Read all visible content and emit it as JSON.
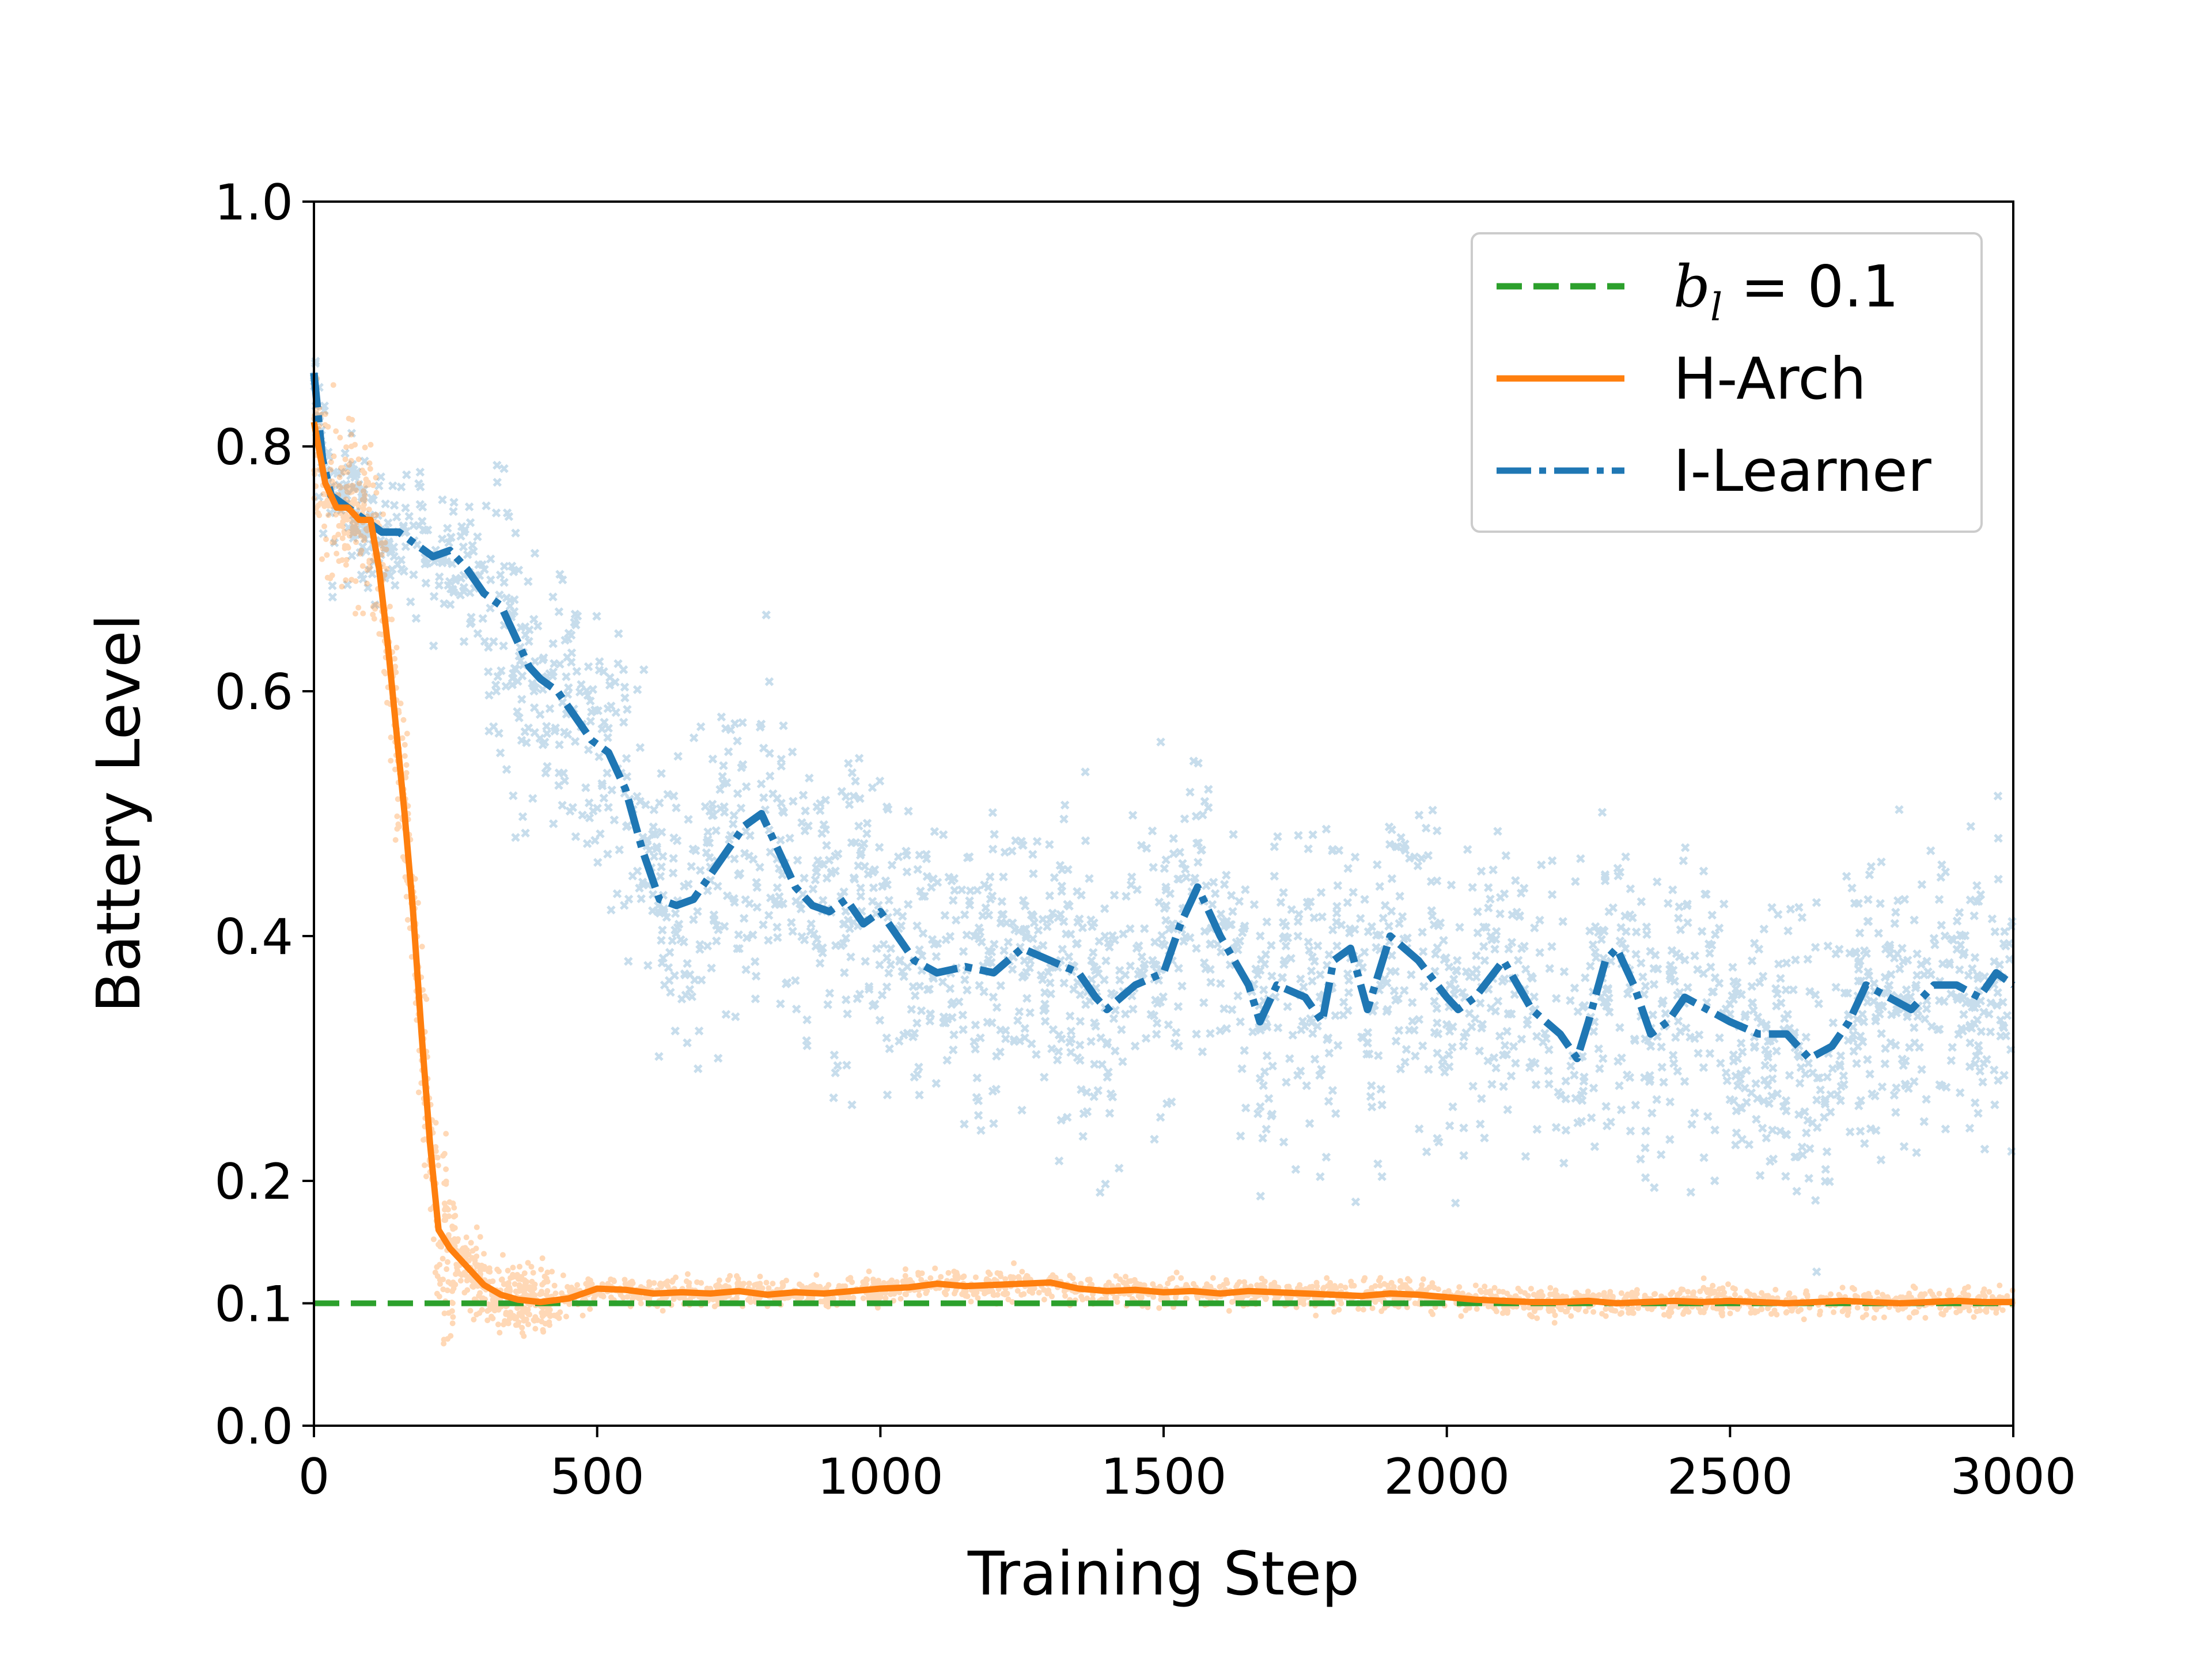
{
  "chart_data": {
    "type": "line",
    "title": "",
    "xlabel": "Training Step",
    "ylabel": "Battery Level",
    "xlim": [
      0,
      3000
    ],
    "ylim": [
      0.0,
      1.0
    ],
    "xticks": [
      0,
      500,
      1000,
      1500,
      2000,
      2500,
      3000
    ],
    "xtick_labels": [
      "0",
      "500",
      "1000",
      "1500",
      "2000",
      "2500",
      "3000"
    ],
    "yticks": [
      0.0,
      0.1,
      0.2,
      0.4,
      0.6,
      0.8,
      1.0
    ],
    "ytick_labels": [
      "0.0",
      "0.1",
      "0.2",
      "0.4",
      "0.6",
      "0.8",
      "1.0"
    ],
    "grid": false,
    "legend": {
      "position": "top-right",
      "threshold_label_var": "b",
      "threshold_label_sub": "l",
      "threshold_label_rest": " = 0.1",
      "entries": [
        "b_l = 0.1",
        "H-Arch",
        "I-Learner"
      ]
    },
    "colors": {
      "threshold": "#2ca02c",
      "h_arch": "#ff7f0e",
      "i_learner": "#1f77b4"
    },
    "threshold": {
      "name": "b_l = 0.1",
      "value": 0.1,
      "style": "dashed"
    },
    "series": [
      {
        "name": "H-Arch",
        "style": "solid",
        "x": [
          0,
          20,
          40,
          60,
          80,
          100,
          115,
          130,
          145,
          160,
          175,
          190,
          205,
          220,
          240,
          260,
          280,
          300,
          330,
          360,
          400,
          450,
          500,
          550,
          600,
          650,
          700,
          750,
          800,
          850,
          900,
          950,
          1000,
          1050,
          1100,
          1150,
          1200,
          1250,
          1300,
          1350,
          1400,
          1450,
          1500,
          1550,
          1600,
          1650,
          1700,
          1750,
          1800,
          1850,
          1900,
          1950,
          2000,
          2050,
          2100,
          2150,
          2200,
          2250,
          2300,
          2350,
          2400,
          2450,
          2500,
          2550,
          2600,
          2650,
          2700,
          2750,
          2800,
          2850,
          2900,
          2950,
          3000
        ],
        "values": [
          0.82,
          0.77,
          0.75,
          0.75,
          0.74,
          0.74,
          0.7,
          0.64,
          0.57,
          0.5,
          0.42,
          0.32,
          0.23,
          0.16,
          0.145,
          0.135,
          0.125,
          0.115,
          0.107,
          0.103,
          0.101,
          0.104,
          0.112,
          0.111,
          0.108,
          0.109,
          0.108,
          0.11,
          0.107,
          0.109,
          0.108,
          0.11,
          0.112,
          0.113,
          0.116,
          0.114,
          0.115,
          0.116,
          0.117,
          0.112,
          0.11,
          0.111,
          0.109,
          0.11,
          0.108,
          0.11,
          0.109,
          0.108,
          0.107,
          0.106,
          0.108,
          0.107,
          0.105,
          0.103,
          0.102,
          0.101,
          0.101,
          0.102,
          0.1,
          0.101,
          0.102,
          0.101,
          0.102,
          0.101,
          0.1,
          0.101,
          0.102,
          0.101,
          0.1,
          0.101,
          0.102,
          0.101,
          0.101
        ]
      },
      {
        "name": "I-Learner",
        "style": "dashdot",
        "x": [
          0,
          15,
          30,
          60,
          90,
          120,
          150,
          180,
          210,
          240,
          270,
          300,
          330,
          360,
          380,
          400,
          430,
          460,
          490,
          520,
          550,
          580,
          610,
          640,
          670,
          700,
          730,
          760,
          790,
          820,
          850,
          880,
          910,
          940,
          970,
          1000,
          1030,
          1060,
          1100,
          1150,
          1200,
          1250,
          1300,
          1350,
          1380,
          1400,
          1450,
          1500,
          1530,
          1560,
          1600,
          1650,
          1670,
          1700,
          1750,
          1780,
          1800,
          1830,
          1860,
          1900,
          1950,
          2000,
          2020,
          2050,
          2100,
          2150,
          2200,
          2230,
          2250,
          2280,
          2300,
          2330,
          2360,
          2390,
          2420,
          2460,
          2500,
          2550,
          2600,
          2640,
          2680,
          2710,
          2740,
          2780,
          2820,
          2860,
          2900,
          2940,
          2970,
          3000
        ],
        "values": [
          0.86,
          0.79,
          0.76,
          0.75,
          0.74,
          0.73,
          0.73,
          0.72,
          0.71,
          0.715,
          0.7,
          0.68,
          0.67,
          0.64,
          0.62,
          0.61,
          0.6,
          0.58,
          0.56,
          0.55,
          0.52,
          0.47,
          0.43,
          0.425,
          0.43,
          0.45,
          0.47,
          0.49,
          0.5,
          0.47,
          0.44,
          0.425,
          0.42,
          0.43,
          0.41,
          0.42,
          0.4,
          0.38,
          0.37,
          0.375,
          0.37,
          0.39,
          0.38,
          0.37,
          0.35,
          0.34,
          0.36,
          0.37,
          0.41,
          0.44,
          0.4,
          0.36,
          0.33,
          0.36,
          0.35,
          0.33,
          0.38,
          0.39,
          0.34,
          0.4,
          0.38,
          0.35,
          0.34,
          0.35,
          0.38,
          0.34,
          0.32,
          0.3,
          0.33,
          0.38,
          0.39,
          0.36,
          0.32,
          0.33,
          0.35,
          0.34,
          0.33,
          0.32,
          0.32,
          0.3,
          0.31,
          0.33,
          0.36,
          0.35,
          0.34,
          0.36,
          0.36,
          0.35,
          0.37,
          0.36
        ]
      }
    ],
    "scatter": [
      {
        "name": "H-Arch samples",
        "marker": "dot",
        "alpha": 0.3
      },
      {
        "name": "I-Learner samples",
        "marker": "x",
        "alpha": 0.25
      }
    ]
  }
}
